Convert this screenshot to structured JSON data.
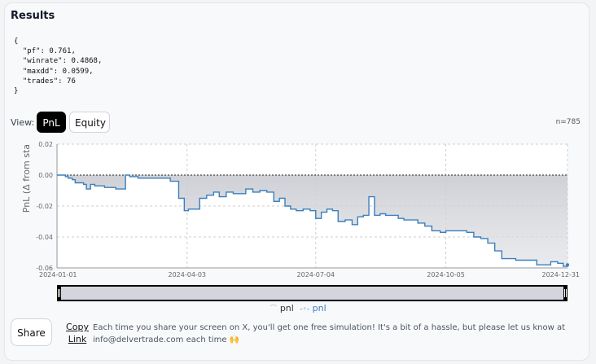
{
  "results": {
    "title": "Results",
    "json_text": "{\n  \"pf\": 0.761,\n  \"winrate\": 0.4868,\n  \"maxdd\": 0.0599,\n  \"trades\": 76\n}"
  },
  "view": {
    "label": "View:",
    "pnl_button": "PnL",
    "equity_button": "Equity",
    "selected": "PnL",
    "count": "n=785"
  },
  "chart_data": {
    "type": "line",
    "ylabel": "PnL (Δ from sta",
    "y_ticks": [
      "0.02",
      "0.00",
      "-0.02",
      "-0.04",
      "-0.06"
    ],
    "x_ticks": [
      "2024-01-01",
      "2024-04-03",
      "2024-07-04",
      "2024-10-05",
      "2024-12-31"
    ],
    "ylim": [
      -0.06,
      0.02
    ],
    "xlim": [
      "2024-01-01",
      "2024-12-31"
    ],
    "grid": true,
    "zero_line": true,
    "fill_to_zero": true,
    "line_color": "#3a7fbd",
    "fill_color": "#dcdde2",
    "series": [
      {
        "name": "pnl",
        "x": [
          "2024-01-01",
          "2024-01-04",
          "2024-01-07",
          "2024-01-09",
          "2024-01-12",
          "2024-01-14",
          "2024-01-17",
          "2024-01-20",
          "2024-01-22",
          "2024-01-25",
          "2024-01-28",
          "2024-02-01",
          "2024-02-04",
          "2024-02-08",
          "2024-02-12",
          "2024-02-16",
          "2024-02-19",
          "2024-02-22",
          "2024-02-25",
          "2024-02-28",
          "2024-03-03",
          "2024-03-07",
          "2024-03-12",
          "2024-03-17",
          "2024-03-22",
          "2024-03-28",
          "2024-04-01",
          "2024-04-04",
          "2024-04-08",
          "2024-04-12",
          "2024-04-17",
          "2024-04-22",
          "2024-04-26",
          "2024-05-01",
          "2024-05-06",
          "2024-05-10",
          "2024-05-15",
          "2024-05-20",
          "2024-05-25",
          "2024-05-30",
          "2024-06-04",
          "2024-06-08",
          "2024-06-12",
          "2024-06-16",
          "2024-06-20",
          "2024-06-25",
          "2024-06-30",
          "2024-07-04",
          "2024-07-08",
          "2024-07-12",
          "2024-07-16",
          "2024-07-20",
          "2024-07-25",
          "2024-07-30",
          "2024-08-03",
          "2024-08-07",
          "2024-08-11",
          "2024-08-15",
          "2024-08-19",
          "2024-08-23",
          "2024-08-27",
          "2024-09-01",
          "2024-09-05",
          "2024-09-10",
          "2024-09-15",
          "2024-09-20",
          "2024-09-25",
          "2024-10-01",
          "2024-10-05",
          "2024-10-10",
          "2024-10-15",
          "2024-10-20",
          "2024-10-25",
          "2024-10-30",
          "2024-11-04",
          "2024-11-09",
          "2024-11-14",
          "2024-11-19",
          "2024-11-24",
          "2024-11-29",
          "2024-12-04",
          "2024-12-09",
          "2024-12-14",
          "2024-12-19",
          "2024-12-24",
          "2024-12-28",
          "2024-12-31"
        ],
        "y": [
          0.0,
          0.0,
          -0.001,
          -0.002,
          -0.003,
          -0.005,
          -0.005,
          -0.006,
          -0.009,
          -0.006,
          -0.007,
          -0.007,
          -0.008,
          -0.008,
          -0.009,
          -0.009,
          0.0,
          -0.001,
          -0.001,
          -0.002,
          -0.002,
          -0.002,
          -0.002,
          -0.002,
          -0.004,
          -0.015,
          -0.023,
          -0.022,
          -0.022,
          -0.015,
          -0.013,
          -0.011,
          -0.014,
          -0.011,
          -0.012,
          -0.012,
          -0.009,
          -0.011,
          -0.01,
          -0.011,
          -0.017,
          -0.015,
          -0.02,
          -0.022,
          -0.023,
          -0.022,
          -0.023,
          -0.028,
          -0.024,
          -0.022,
          -0.023,
          -0.03,
          -0.029,
          -0.032,
          -0.027,
          -0.026,
          -0.014,
          -0.026,
          -0.025,
          -0.026,
          -0.026,
          -0.028,
          -0.029,
          -0.029,
          -0.031,
          -0.033,
          -0.036,
          -0.037,
          -0.036,
          -0.036,
          -0.036,
          -0.037,
          -0.04,
          -0.041,
          -0.044,
          -0.049,
          -0.054,
          -0.054,
          -0.055,
          -0.055,
          -0.055,
          -0.058,
          -0.058,
          -0.056,
          -0.057,
          -0.059,
          -0.058
        ]
      }
    ]
  },
  "legend": {
    "items": [
      {
        "label": "pnl",
        "symbol": "⌒",
        "color": "#bbbbbb"
      },
      {
        "label": "pnl",
        "symbol": "-◦-",
        "color": "#3a7fbd"
      }
    ]
  },
  "share": {
    "button": "Share",
    "copy_link": "Copy Link",
    "message": "Each time you share your screen on X, you'll get one free simulation! It's a bit of a hassle, but please let us know at info@delvertrade.com each time 🙌"
  }
}
